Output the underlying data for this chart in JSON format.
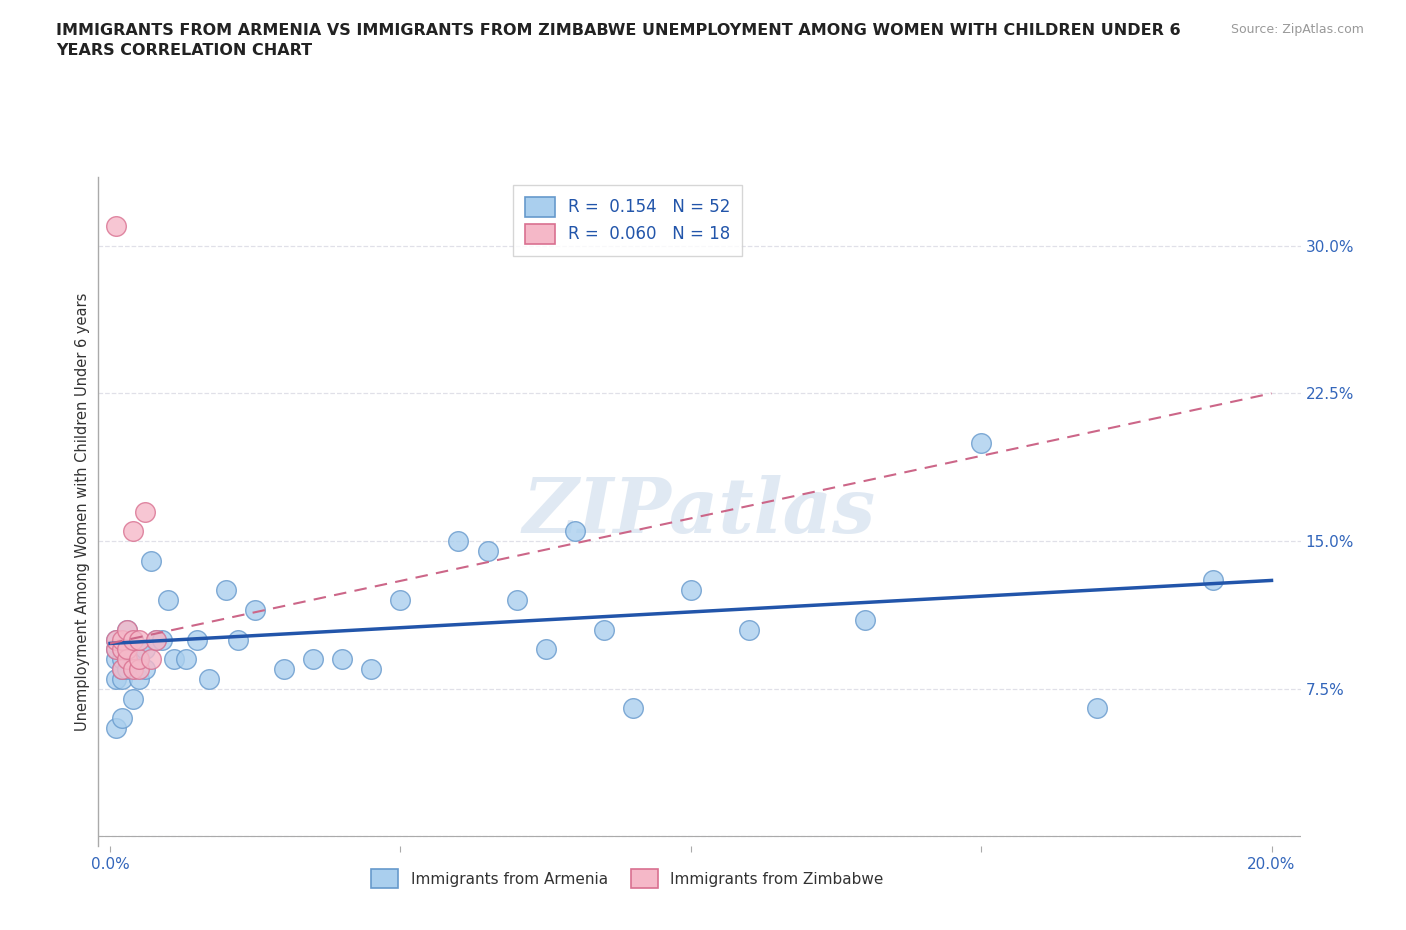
{
  "title": "IMMIGRANTS FROM ARMENIA VS IMMIGRANTS FROM ZIMBABWE UNEMPLOYMENT AMONG WOMEN WITH CHILDREN UNDER 6\nYEARS CORRELATION CHART",
  "source": "Source: ZipAtlas.com",
  "ylabel": "Unemployment Among Women with Children Under 6 years",
  "xlim": [
    -0.002,
    0.205
  ],
  "ylim": [
    -0.005,
    0.335
  ],
  "armenia_color": "#aacfee",
  "armenia_edge": "#6699cc",
  "zimbabwe_color": "#f5b8c8",
  "zimbabwe_edge": "#d97090",
  "armenia_R": 0.154,
  "armenia_N": 52,
  "zimbabwe_R": 0.06,
  "zimbabwe_N": 18,
  "watermark": "ZIPatlas",
  "background_color": "#ffffff",
  "grid_color": "#e0e0e8",
  "armenia_points_x": [
    0.001,
    0.001,
    0.001,
    0.001,
    0.001,
    0.002,
    0.002,
    0.002,
    0.002,
    0.002,
    0.003,
    0.003,
    0.003,
    0.003,
    0.004,
    0.004,
    0.004,
    0.004,
    0.005,
    0.005,
    0.005,
    0.006,
    0.006,
    0.007,
    0.008,
    0.009,
    0.01,
    0.011,
    0.013,
    0.015,
    0.017,
    0.02,
    0.022,
    0.025,
    0.03,
    0.035,
    0.04,
    0.045,
    0.05,
    0.06,
    0.065,
    0.07,
    0.075,
    0.08,
    0.085,
    0.09,
    0.1,
    0.11,
    0.13,
    0.15,
    0.17,
    0.19
  ],
  "armenia_points_y": [
    0.055,
    0.08,
    0.09,
    0.095,
    0.1,
    0.06,
    0.08,
    0.085,
    0.09,
    0.095,
    0.085,
    0.09,
    0.095,
    0.105,
    0.07,
    0.085,
    0.09,
    0.1,
    0.08,
    0.09,
    0.095,
    0.085,
    0.095,
    0.14,
    0.1,
    0.1,
    0.12,
    0.09,
    0.09,
    0.1,
    0.08,
    0.125,
    0.1,
    0.115,
    0.085,
    0.09,
    0.09,
    0.085,
    0.12,
    0.15,
    0.145,
    0.12,
    0.095,
    0.155,
    0.105,
    0.065,
    0.125,
    0.105,
    0.11,
    0.2,
    0.065,
    0.13
  ],
  "zimbabwe_points_x": [
    0.001,
    0.001,
    0.001,
    0.002,
    0.002,
    0.002,
    0.003,
    0.003,
    0.003,
    0.004,
    0.004,
    0.004,
    0.005,
    0.005,
    0.005,
    0.006,
    0.007,
    0.008
  ],
  "zimbabwe_points_y": [
    0.095,
    0.1,
    0.31,
    0.085,
    0.095,
    0.1,
    0.09,
    0.095,
    0.105,
    0.085,
    0.1,
    0.155,
    0.085,
    0.09,
    0.1,
    0.165,
    0.09,
    0.1
  ],
  "blue_line_x": [
    0.0,
    0.2
  ],
  "blue_line_y": [
    0.098,
    0.13
  ],
  "pink_line_x": [
    0.0,
    0.2
  ],
  "pink_line_y": [
    0.098,
    0.225
  ]
}
